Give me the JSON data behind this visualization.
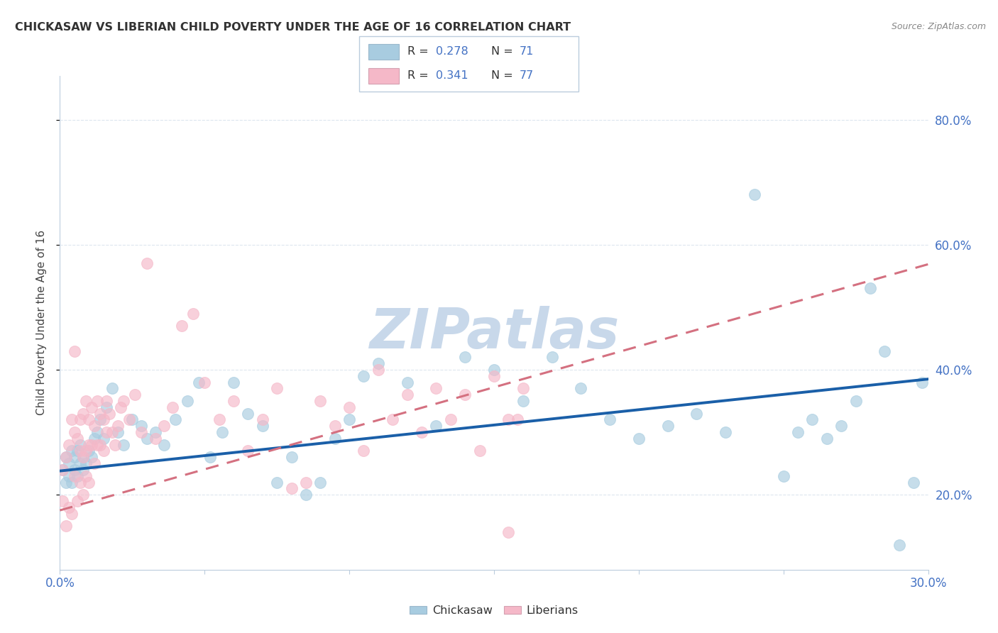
{
  "title": "CHICKASAW VS LIBERIAN CHILD POVERTY UNDER THE AGE OF 16 CORRELATION CHART",
  "source": "Source: ZipAtlas.com",
  "ylabel": "Child Poverty Under the Age of 16",
  "xlim": [
    0.0,
    0.3
  ],
  "ylim": [
    0.08,
    0.87
  ],
  "xticks": [
    0.0,
    0.05,
    0.1,
    0.15,
    0.2,
    0.25,
    0.3
  ],
  "xtick_labels": [
    "0.0%",
    "",
    "",
    "",
    "",
    "",
    "30.0%"
  ],
  "ytick_positions": [
    0.2,
    0.4,
    0.6,
    0.8
  ],
  "ytick_labels": [
    "20.0%",
    "40.0%",
    "60.0%",
    "80.0%"
  ],
  "chickasaw_color": "#a8cce0",
  "liberian_color": "#f5b8c8",
  "chickasaw_line_color": "#1a5fa8",
  "liberian_line_color": "#d47080",
  "R_chickasaw": 0.278,
  "N_chickasaw": 71,
  "R_liberian": 0.341,
  "N_liberian": 77,
  "watermark": "ZIPatlas",
  "watermark_color": "#c8d8ea",
  "legend_label_chickasaw": "Chickasaw",
  "legend_label_liberian": "Liberians",
  "background_color": "#ffffff",
  "grid_color": "#dde6ee",
  "accent_color": "#4472c4",
  "chickasaw_x": [
    0.001,
    0.002,
    0.002,
    0.003,
    0.003,
    0.004,
    0.004,
    0.005,
    0.005,
    0.006,
    0.006,
    0.007,
    0.007,
    0.008,
    0.008,
    0.009,
    0.01,
    0.011,
    0.012,
    0.013,
    0.014,
    0.015,
    0.016,
    0.018,
    0.02,
    0.022,
    0.025,
    0.028,
    0.03,
    0.033,
    0.036,
    0.04,
    0.044,
    0.048,
    0.052,
    0.056,
    0.06,
    0.065,
    0.07,
    0.075,
    0.08,
    0.085,
    0.09,
    0.095,
    0.1,
    0.105,
    0.11,
    0.12,
    0.13,
    0.14,
    0.15,
    0.16,
    0.17,
    0.18,
    0.19,
    0.2,
    0.21,
    0.22,
    0.23,
    0.24,
    0.25,
    0.255,
    0.26,
    0.265,
    0.27,
    0.275,
    0.28,
    0.285,
    0.29,
    0.295,
    0.298
  ],
  "chickasaw_y": [
    0.24,
    0.22,
    0.26,
    0.23,
    0.25,
    0.22,
    0.27,
    0.24,
    0.26,
    0.23,
    0.27,
    0.25,
    0.28,
    0.24,
    0.26,
    0.25,
    0.27,
    0.26,
    0.29,
    0.3,
    0.32,
    0.29,
    0.34,
    0.37,
    0.3,
    0.28,
    0.32,
    0.31,
    0.29,
    0.3,
    0.28,
    0.32,
    0.35,
    0.38,
    0.26,
    0.3,
    0.38,
    0.33,
    0.31,
    0.22,
    0.26,
    0.2,
    0.22,
    0.29,
    0.32,
    0.39,
    0.41,
    0.38,
    0.31,
    0.42,
    0.4,
    0.35,
    0.42,
    0.37,
    0.32,
    0.29,
    0.31,
    0.33,
    0.3,
    0.68,
    0.23,
    0.3,
    0.32,
    0.29,
    0.31,
    0.35,
    0.53,
    0.43,
    0.12,
    0.22,
    0.38
  ],
  "liberian_x": [
    0.001,
    0.001,
    0.002,
    0.002,
    0.003,
    0.003,
    0.004,
    0.004,
    0.005,
    0.005,
    0.005,
    0.006,
    0.006,
    0.007,
    0.007,
    0.007,
    0.008,
    0.008,
    0.008,
    0.009,
    0.009,
    0.009,
    0.01,
    0.01,
    0.01,
    0.011,
    0.011,
    0.012,
    0.012,
    0.013,
    0.013,
    0.014,
    0.014,
    0.015,
    0.015,
    0.016,
    0.016,
    0.017,
    0.018,
    0.019,
    0.02,
    0.021,
    0.022,
    0.024,
    0.026,
    0.028,
    0.03,
    0.033,
    0.036,
    0.039,
    0.042,
    0.046,
    0.05,
    0.055,
    0.06,
    0.065,
    0.07,
    0.075,
    0.08,
    0.085,
    0.09,
    0.095,
    0.1,
    0.105,
    0.11,
    0.115,
    0.12,
    0.125,
    0.13,
    0.135,
    0.14,
    0.145,
    0.15,
    0.155,
    0.155,
    0.158,
    0.16
  ],
  "liberian_y": [
    0.24,
    0.19,
    0.26,
    0.15,
    0.28,
    0.18,
    0.32,
    0.17,
    0.3,
    0.23,
    0.43,
    0.29,
    0.19,
    0.32,
    0.27,
    0.22,
    0.33,
    0.26,
    0.2,
    0.35,
    0.27,
    0.23,
    0.32,
    0.28,
    0.22,
    0.34,
    0.28,
    0.31,
    0.25,
    0.35,
    0.28,
    0.33,
    0.28,
    0.32,
    0.27,
    0.35,
    0.3,
    0.33,
    0.3,
    0.28,
    0.31,
    0.34,
    0.35,
    0.32,
    0.36,
    0.3,
    0.57,
    0.29,
    0.31,
    0.34,
    0.47,
    0.49,
    0.38,
    0.32,
    0.35,
    0.27,
    0.32,
    0.37,
    0.21,
    0.22,
    0.35,
    0.31,
    0.34,
    0.27,
    0.4,
    0.32,
    0.36,
    0.3,
    0.37,
    0.32,
    0.36,
    0.27,
    0.39,
    0.32,
    0.14,
    0.32,
    0.37
  ],
  "trend_chickasaw_x0": 0.0,
  "trend_chickasaw_y0": 0.238,
  "trend_chickasaw_x1": 0.3,
  "trend_chickasaw_y1": 0.385,
  "trend_liberian_x0": 0.0,
  "trend_liberian_y0": 0.175,
  "trend_liberian_x1": 0.16,
  "trend_liberian_y1": 0.385
}
